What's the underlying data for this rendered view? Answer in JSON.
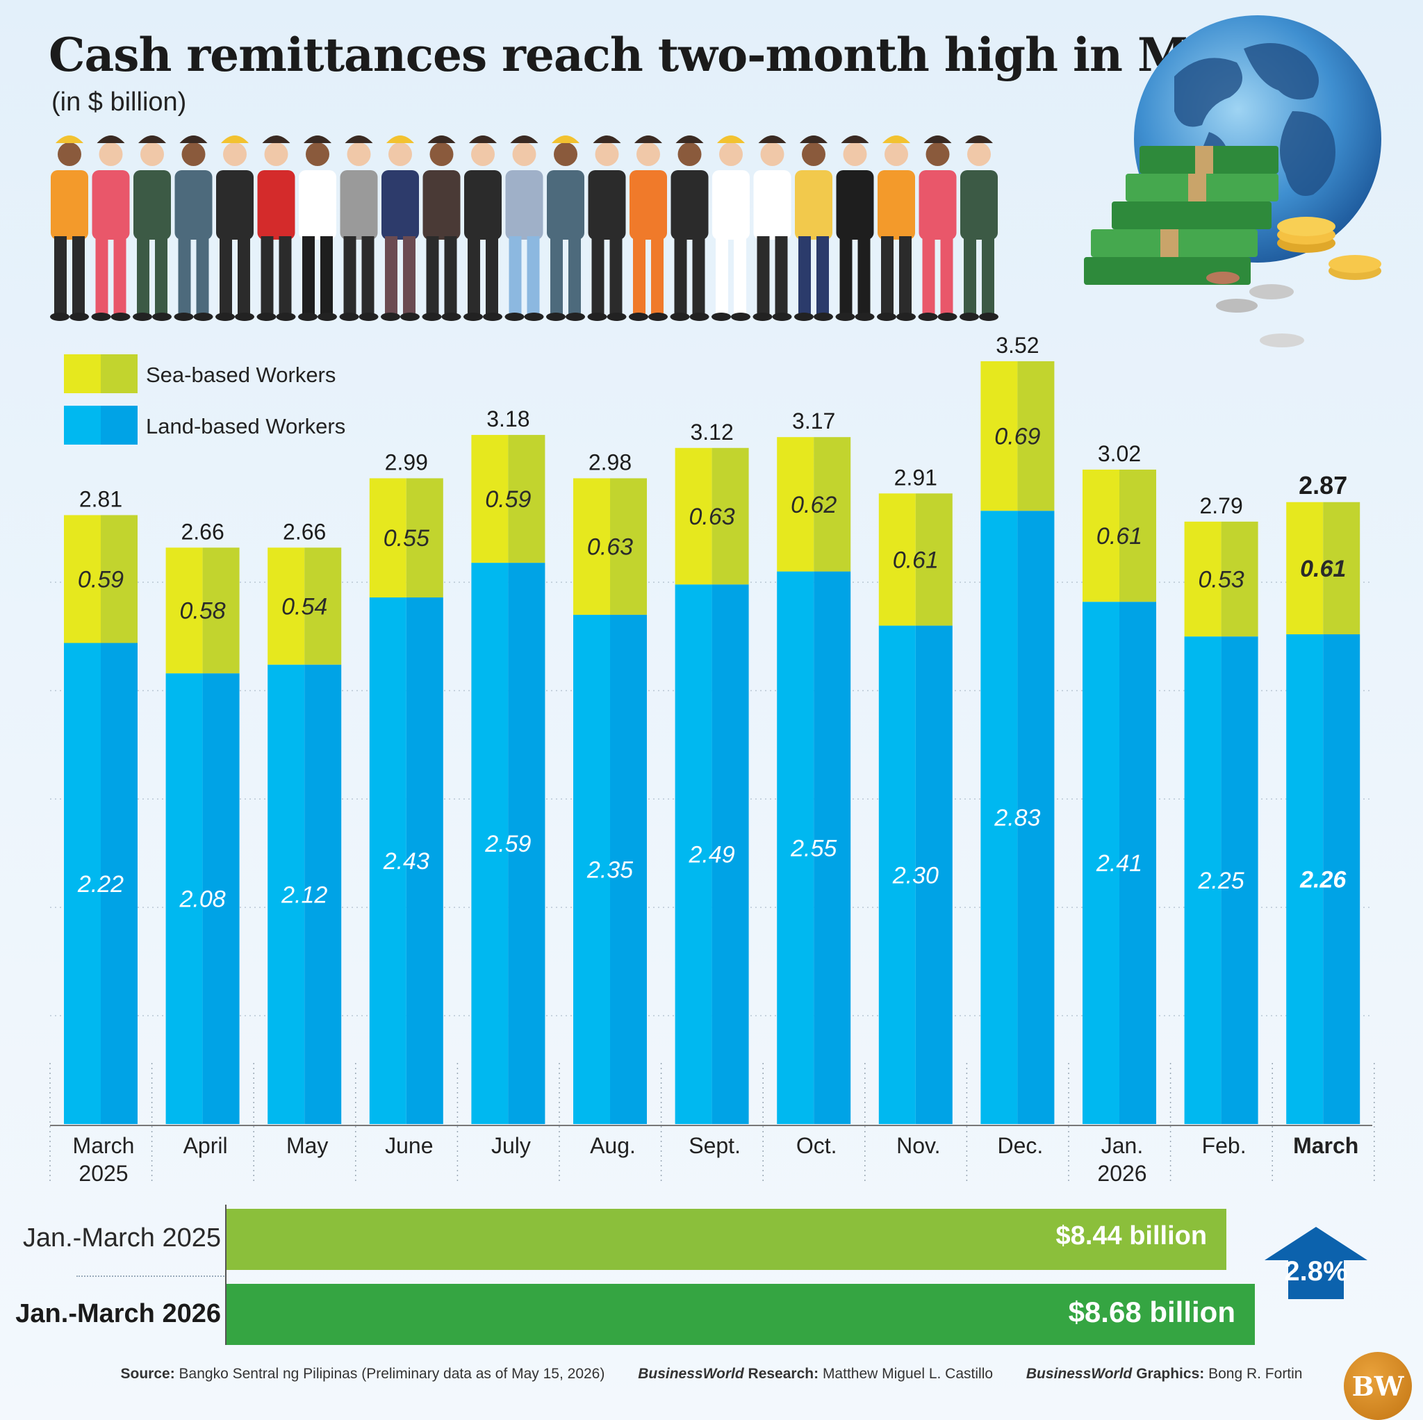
{
  "title": "Cash remittances reach two-month high in March",
  "subtitle": "(in $ billion)",
  "colors": {
    "sea_light": "#e6e81e",
    "sea_dark": "#c2d42e",
    "land_light": "#00b8f0",
    "land_dark": "#00a3e6",
    "summary_2025": "#8bbf3b",
    "summary_2026": "#35a542",
    "arrow": "#0c62ad"
  },
  "legend": [
    {
      "label": "Sea-based Workers",
      "series": "sea"
    },
    {
      "label": "Land-based Workers",
      "series": "land"
    }
  ],
  "chart_data": {
    "type": "bar",
    "stacked": true,
    "categories": [
      "March\n2025",
      "April",
      "May",
      "June",
      "July",
      "Aug.",
      "Sept.",
      "Oct.",
      "Nov.",
      "Dec.",
      "Jan.\n2026",
      "Feb.",
      "March"
    ],
    "series": [
      {
        "name": "Land-based Workers",
        "key": "land",
        "values": [
          2.22,
          2.08,
          2.12,
          2.43,
          2.59,
          2.35,
          2.49,
          2.55,
          2.3,
          2.83,
          2.41,
          2.25,
          2.26
        ],
        "labels": [
          "2.22",
          "2.08",
          "2.12",
          "2.43",
          "2.59",
          "2.35",
          "2.49",
          "2.55",
          "2.30",
          "2.83",
          "2.41",
          "2.25",
          "2.26"
        ]
      },
      {
        "name": "Sea-based Workers",
        "key": "sea",
        "values": [
          0.59,
          0.58,
          0.54,
          0.55,
          0.59,
          0.63,
          0.63,
          0.62,
          0.61,
          0.69,
          0.61,
          0.53,
          0.61
        ],
        "labels": [
          "0.59",
          "0.58",
          "0.54",
          "0.55",
          "0.59",
          "0.63",
          "0.63",
          "0.62",
          "0.61",
          "0.69",
          "0.61",
          "0.53",
          "0.61"
        ]
      }
    ],
    "totals": [
      2.81,
      2.66,
      2.66,
      2.99,
      3.18,
      2.98,
      3.12,
      3.17,
      2.91,
      3.52,
      3.02,
      2.79,
      2.87
    ],
    "total_labels": [
      "2.81",
      "2.66",
      "2.66",
      "2.99",
      "3.18",
      "2.98",
      "3.12",
      "3.17",
      "2.91",
      "3.52",
      "3.02",
      "2.79",
      "2.87"
    ],
    "highlight_index": 12,
    "ylim": [
      0,
      3.52
    ],
    "grid": true,
    "legend_position": "top-left"
  },
  "summary": {
    "rows": [
      {
        "label": "Jan.-March 2025",
        "value": 8.44,
        "value_label": "$8.44 billion"
      },
      {
        "label": "Jan.-March 2026",
        "value": 8.68,
        "value_label": "$8.68 billion"
      }
    ],
    "change_label": "2.8%"
  },
  "source": {
    "source_label": "Source:",
    "source_text": "Bangko Sentral ng Pilipinas (Preliminary data as of May 15, 2026)",
    "research_brand": "BusinessWorld",
    "research_label": "Research:",
    "research_name": "Matthew Miguel L. Castillo",
    "graphics_brand": "BusinessWorld",
    "graphics_label": "Graphics:",
    "graphics_name": "Bong R. Fortin"
  },
  "logo": "BW"
}
